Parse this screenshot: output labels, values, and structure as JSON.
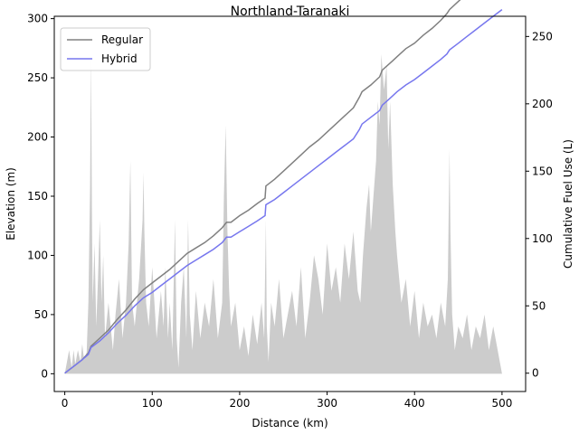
{
  "chart_data": {
    "type": "line",
    "title": "Northland-Taranaki",
    "xlabel": "Distance (km)",
    "ylabel": "Elevation (m)",
    "y2label": "Cumulative Fuel Use (L)",
    "xlim": [
      -12,
      527
    ],
    "ylim": [
      -15,
      302
    ],
    "y2lim": [
      -13.6,
      265
    ],
    "x_ticks": [
      0,
      100,
      200,
      300,
      400,
      500
    ],
    "y_ticks": [
      0,
      50,
      100,
      150,
      200,
      250,
      300
    ],
    "y2_ticks": [
      0,
      50,
      100,
      150,
      200,
      250
    ],
    "legend_position": "top-left",
    "grid": false,
    "elevation": {
      "name": "Elevation",
      "color": "#cccccc",
      "x": [
        0,
        5,
        8,
        10,
        12,
        15,
        18,
        20,
        22,
        25,
        27,
        29,
        30,
        31,
        32,
        34,
        36,
        38,
        40,
        42,
        44,
        46,
        50,
        55,
        58,
        62,
        66,
        70,
        73,
        75,
        77,
        80,
        85,
        89,
        90,
        91,
        93,
        96,
        100,
        105,
        110,
        113,
        115,
        118,
        120,
        123,
        126,
        128,
        130,
        133,
        136,
        139,
        140,
        141,
        143,
        146,
        150,
        155,
        160,
        165,
        170,
        175,
        180,
        182,
        184,
        186,
        188,
        190,
        195,
        200,
        205,
        210,
        215,
        220,
        225,
        228,
        230,
        231,
        233,
        236,
        240,
        245,
        250,
        255,
        260,
        265,
        270,
        275,
        280,
        285,
        290,
        295,
        300,
        305,
        310,
        315,
        320,
        325,
        330,
        335,
        338,
        341,
        345,
        348,
        350,
        353,
        356,
        358,
        360,
        362,
        365,
        368,
        370,
        372,
        375,
        378,
        380,
        385,
        390,
        395,
        400,
        405,
        410,
        415,
        420,
        425,
        430,
        435,
        438,
        440,
        441,
        443,
        446,
        450,
        455,
        460,
        465,
        470,
        475,
        480,
        485,
        490,
        495,
        500
      ],
      "values": [
        0,
        20,
        5,
        20,
        8,
        20,
        10,
        25,
        12,
        18,
        60,
        160,
        270,
        140,
        60,
        110,
        40,
        80,
        130,
        60,
        100,
        30,
        60,
        20,
        50,
        80,
        30,
        60,
        110,
        180,
        60,
        40,
        80,
        130,
        170,
        120,
        60,
        40,
        90,
        30,
        70,
        40,
        90,
        30,
        60,
        20,
        130,
        30,
        5,
        60,
        90,
        30,
        80,
        130,
        50,
        20,
        70,
        30,
        60,
        40,
        80,
        30,
        60,
        150,
        210,
        120,
        70,
        40,
        60,
        20,
        40,
        15,
        50,
        25,
        60,
        30,
        130,
        40,
        10,
        60,
        40,
        80,
        30,
        50,
        70,
        40,
        90,
        30,
        60,
        100,
        80,
        50,
        110,
        70,
        90,
        60,
        110,
        80,
        120,
        70,
        60,
        100,
        140,
        160,
        120,
        150,
        180,
        230,
        210,
        270,
        240,
        260,
        190,
        230,
        160,
        120,
        100,
        60,
        80,
        40,
        70,
        30,
        60,
        40,
        50,
        30,
        60,
        40,
        80,
        190,
        120,
        50,
        20,
        40,
        30,
        50,
        20,
        40,
        30,
        50,
        20,
        40,
        20,
        0
      ]
    },
    "series": [
      {
        "name": "Regular",
        "color": "#808080",
        "x": [
          0,
          10,
          20,
          27,
          30,
          40,
          50,
          60,
          70,
          80,
          90,
          100,
          110,
          120,
          130,
          140,
          150,
          160,
          170,
          180,
          185,
          190,
          200,
          210,
          220,
          229,
          230,
          240,
          250,
          260,
          270,
          280,
          290,
          300,
          310,
          320,
          330,
          337,
          340,
          350,
          360,
          363,
          370,
          375,
          380,
          390,
          400,
          410,
          420,
          430,
          437,
          440,
          450,
          460,
          470,
          480,
          490,
          500
        ],
        "values": [
          0,
          5,
          10,
          15,
          20,
          26,
          32,
          40,
          47,
          55,
          62,
          67,
          72,
          77,
          83,
          89,
          93,
          97,
          102,
          108,
          112,
          112,
          117,
          121,
          126,
          130,
          139,
          144,
          150,
          156,
          162,
          168,
          173,
          179,
          185,
          191,
          197,
          205,
          209,
          214,
          220,
          225,
          229,
          232,
          235,
          241,
          245,
          251,
          256,
          262,
          267,
          270,
          276,
          282,
          288,
          293,
          299,
          305
        ]
      },
      {
        "name": "Hybrid",
        "color": "#7777ee",
        "x": [
          0,
          10,
          20,
          27,
          30,
          40,
          50,
          60,
          70,
          80,
          90,
          100,
          110,
          120,
          130,
          140,
          150,
          160,
          170,
          180,
          185,
          190,
          200,
          210,
          220,
          229,
          230,
          240,
          250,
          260,
          270,
          280,
          290,
          300,
          310,
          320,
          330,
          337,
          340,
          350,
          360,
          363,
          370,
          375,
          380,
          390,
          400,
          410,
          420,
          430,
          437,
          440,
          450,
          460,
          470,
          480,
          490,
          500
        ],
        "values": [
          0,
          5,
          10,
          14,
          19,
          24,
          30,
          37,
          43,
          50,
          56,
          60,
          65,
          70,
          75,
          80,
          84,
          88,
          92,
          97,
          101,
          101,
          105,
          109,
          113,
          117,
          125,
          129,
          134,
          139,
          144,
          149,
          154,
          159,
          164,
          169,
          174,
          181,
          185,
          190,
          195,
          199,
          203,
          206,
          209,
          214,
          218,
          223,
          228,
          233,
          237,
          240,
          245,
          250,
          255,
          260,
          265,
          270
        ]
      }
    ]
  }
}
